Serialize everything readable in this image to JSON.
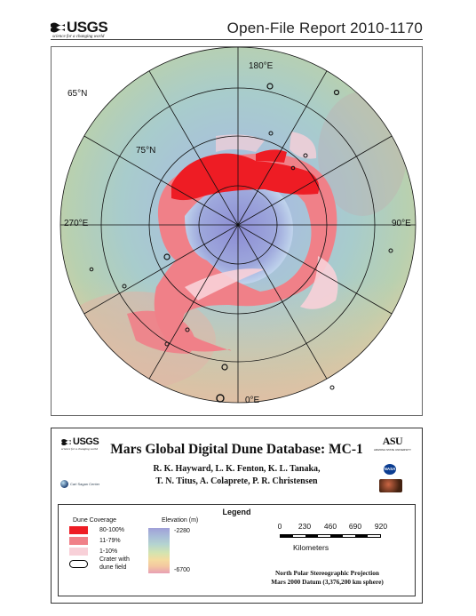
{
  "header": {
    "logo_text": "USGS",
    "logo_tagline": "science for a changing world",
    "report_title": "Open-File Report 2010-1170"
  },
  "map": {
    "projection_labels": {
      "lon_180": "180°E",
      "lon_90": "90°E",
      "lon_270": "270°E",
      "lon_0": "0°E",
      "lat_65": "65°N",
      "lat_75": "75°N"
    },
    "colors": {
      "dune_80_100": "#ee1c24",
      "dune_11_79": "#f08088",
      "dune_1_10": "#f8d0d8",
      "elev_high": "#a0a0d8",
      "elev_low": "#e8a0b4"
    }
  },
  "panel": {
    "logo_text": "USGS",
    "logo_tagline": "science for a changing world",
    "title": "Mars Global Digital Dune Database: MC-1",
    "authors_line1": "R. K. Hayward, L. K. Fenton, K. L. Tanaka,",
    "authors_line2": "T. N. Titus, A. Colaprete, P. R. Christensen",
    "asu_logo": "ASU",
    "asu_tagline": "ARIZONA STATE UNIVERSITY",
    "sagan_logo": "Carl Sagan Center",
    "nasa_logo": "NASA"
  },
  "legend": {
    "title": "Legend",
    "dune_coverage_heading": "Dune Coverage",
    "dune_classes": [
      "80-100%",
      "11-79%",
      "1-10%"
    ],
    "crater_label_line1": "Crater with",
    "crater_label_line2": "dune field",
    "elevation_heading": "Elevation (m)",
    "elevation_max": "-2280",
    "elevation_min": "-6700",
    "scale_ticks": [
      "0",
      "230",
      "460",
      "690",
      "920"
    ],
    "scale_unit": "Kilometers",
    "projection": "North Polar Stereographic Projection",
    "datum": "Mars 2000 Datum (3,376,200 km sphere)"
  }
}
